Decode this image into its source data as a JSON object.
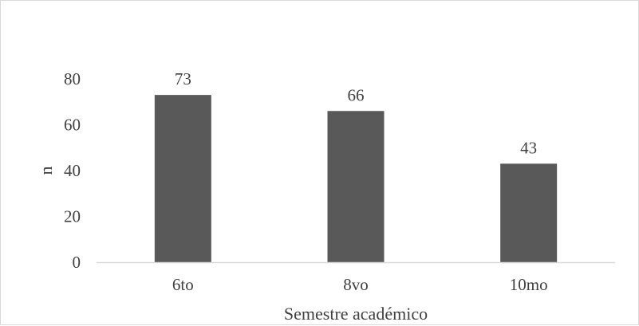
{
  "chart_data": {
    "type": "bar",
    "categories": [
      "6to",
      "8vo",
      "10mo"
    ],
    "values": [
      73,
      66,
      43
    ],
    "data_labels": [
      "73",
      "66",
      "43"
    ],
    "title": "",
    "xlabel": "Semestre académico",
    "ylabel": "n",
    "ylim": [
      0,
      80
    ],
    "yticks": [
      "0",
      "20",
      "40",
      "60",
      "80"
    ],
    "grid": false,
    "legend": "none",
    "bar_color": "#595959",
    "axis_color": "#d9d9d9"
  }
}
